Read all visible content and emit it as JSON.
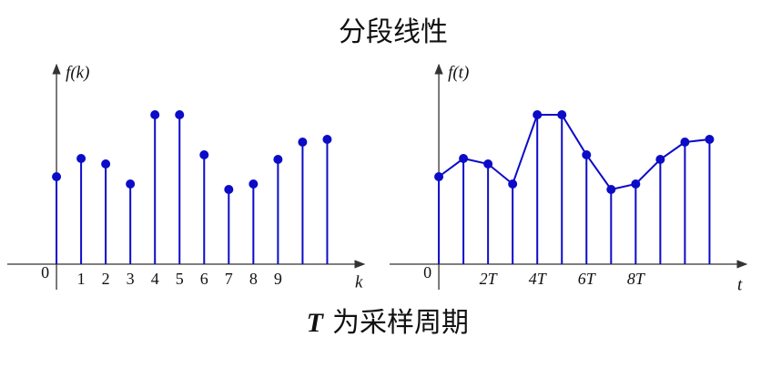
{
  "title": "分段线性",
  "caption_symbol": "T",
  "caption": "为采样周期",
  "chart_data": [
    {
      "type": "stem",
      "ylabel": "f(k)",
      "xlabel": "k",
      "x": [
        0,
        1,
        2,
        3,
        4,
        5,
        6,
        7,
        8,
        9,
        10,
        11
      ],
      "values": [
        4.8,
        5.8,
        5.5,
        4.4,
        8.2,
        8.2,
        6.0,
        4.1,
        4.4,
        5.75,
        6.7,
        6.85
      ],
      "xlim": [
        -2,
        12.5
      ],
      "ylim": [
        0,
        10.75
      ],
      "xticks": [
        0,
        1,
        2,
        3,
        4,
        5,
        6,
        7,
        8,
        9
      ],
      "color": "#0b0bc8"
    },
    {
      "type": "line",
      "stems": true,
      "ylabel": "f(t)",
      "xlabel": "t",
      "x": [
        0,
        1,
        2,
        3,
        4,
        5,
        6,
        7,
        8,
        9,
        10,
        11
      ],
      "values": [
        4.8,
        5.8,
        5.5,
        4.4,
        8.2,
        8.2,
        6.0,
        4.1,
        4.4,
        5.75,
        6.7,
        6.85
      ],
      "xlim": [
        -2,
        12.5
      ],
      "ylim": [
        0,
        10.75
      ],
      "xticks": [
        0,
        {
          "value": 2,
          "label": "2T"
        },
        {
          "value": 4,
          "label": "4T"
        },
        {
          "value": 6,
          "label": "6T"
        },
        {
          "value": 8,
          "label": "8T"
        }
      ],
      "color": "#0b0bc8"
    }
  ]
}
